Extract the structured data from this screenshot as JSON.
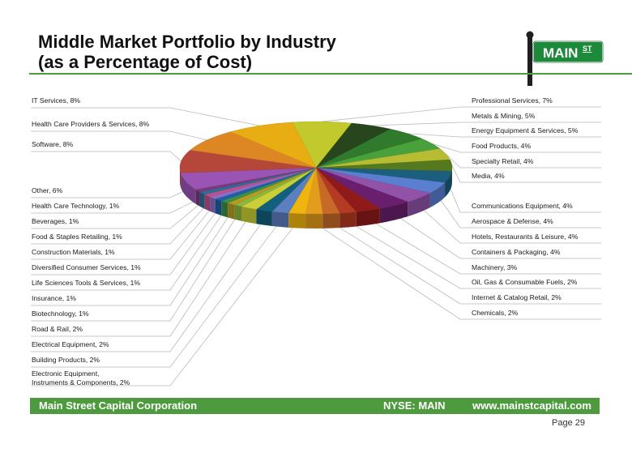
{
  "title": {
    "line1": "Middle Market Portfolio by Industry",
    "line2": "(as a Percentage of Cost)"
  },
  "logo": {
    "text": "MAIN",
    "superscript": "ST"
  },
  "footer": {
    "company": "Main Street Capital Corporation",
    "ticker": "NYSE: MAIN",
    "website": "www.mainstcapital.com"
  },
  "page_label": "Page 29",
  "colors": {
    "brand_green": "#4e9a3f"
  },
  "chart_data": {
    "type": "pie",
    "style": "3d-exploded",
    "slices": [
      {
        "label": "Professional Services, 7%",
        "value": 7,
        "color": "#c2c92c"
      },
      {
        "label": "Metals & Mining, 5%",
        "value": 5,
        "color": "#27461e"
      },
      {
        "label": "Energy Equipment & Services, 5%",
        "value": 5,
        "color": "#2f7a2c"
      },
      {
        "label": "Food Products, 4%",
        "value": 4,
        "color": "#48a13a"
      },
      {
        "label": "Specialty Retail, 4%",
        "value": 4,
        "color": "#b7bc33"
      },
      {
        "label": "Media, 4%",
        "value": 4,
        "color": "#55791e"
      },
      {
        "label": "Communications Equipment, 4%",
        "value": 4,
        "color": "#1b5e7e"
      },
      {
        "label": "Aerospace & Defense, 4%",
        "value": 4,
        "color": "#5a7fd1"
      },
      {
        "label": "Hotels, Restaurants & Leisure, 4%",
        "value": 4,
        "color": "#9152a8"
      },
      {
        "label": "Containers & Packaging, 4%",
        "value": 4,
        "color": "#6a1e6e"
      },
      {
        "label": "Machinery, 3%",
        "value": 3,
        "color": "#8f1a1a"
      },
      {
        "label": "Oil, Gas & Consumable Fuels, 2%",
        "value": 2,
        "color": "#b43b22"
      },
      {
        "label": "Internet & Catalog Retail, 2%",
        "value": 2,
        "color": "#c76a28"
      },
      {
        "label": "Chemicals, 2%",
        "value": 2,
        "color": "#e49c1c"
      },
      {
        "label": "Electronic Equipment, Instruments & Components, 2%",
        "value": 2,
        "color": "#efb40e"
      },
      {
        "label": "Building Products, 2%",
        "value": 2,
        "color": "#5b7fbf"
      },
      {
        "label": "Electrical Equipment, 2%",
        "value": 2,
        "color": "#13607e"
      },
      {
        "label": "Road & Rail, 2%",
        "value": 2,
        "color": "#c9cf34"
      },
      {
        "label": "Biotechnology, 1%",
        "value": 1,
        "color": "#8cb63c"
      },
      {
        "label": "Insurance, 1%",
        "value": 1,
        "color": "#b89b1e"
      },
      {
        "label": "Life Sciences Tools & Services, 1%",
        "value": 1,
        "color": "#3b8f46"
      },
      {
        "label": "Diversified Consumer Services, 1%",
        "value": 1,
        "color": "#1f5fa8"
      },
      {
        "label": "Construction Materials, 1%",
        "value": 1,
        "color": "#8a70c4"
      },
      {
        "label": "Food & Staples Retailing, 1%",
        "value": 1,
        "color": "#c04f8e"
      },
      {
        "label": "Beverages, 1%",
        "value": 1,
        "color": "#2d6e96"
      },
      {
        "label": "Health Care Technology, 1%",
        "value": 1,
        "color": "#7a3b7e"
      },
      {
        "label": "Other, 6%",
        "value": 6,
        "color": "#9a55b4"
      },
      {
        "label": "Software, 8%",
        "value": 8,
        "color": "#b5473a"
      },
      {
        "label": "Health Care Providers & Services, 8%",
        "value": 8,
        "color": "#dc8624"
      },
      {
        "label": "IT Services, 8%",
        "value": 8,
        "color": "#e8ad12"
      }
    ]
  }
}
